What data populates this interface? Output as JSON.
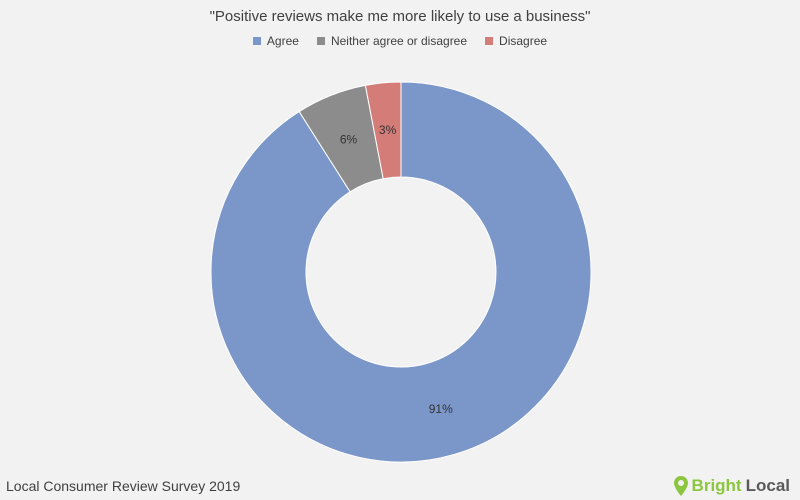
{
  "chart_data": {
    "type": "pie",
    "title": "\"Positive reviews make me more likely to use a business\"",
    "categories": [
      "Agree",
      "Neither agree or disagree",
      "Disagree"
    ],
    "values": [
      91,
      6,
      3
    ],
    "value_labels": [
      "91%",
      "6%",
      "3%"
    ],
    "colors": [
      "#7b96c8",
      "#8c8c8c",
      "#d47c78"
    ],
    "legend_position": "top",
    "donut": true
  },
  "footer": {
    "source": "Local Consumer Review Survey 2019"
  },
  "brand": {
    "bright": "Bright",
    "local": "Local"
  }
}
